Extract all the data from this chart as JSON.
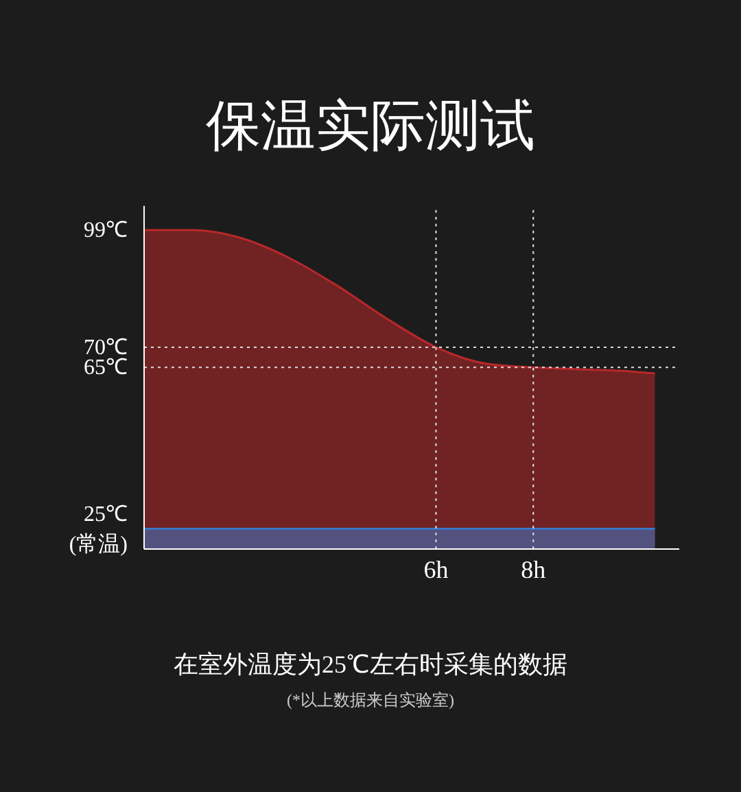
{
  "chart_data": {
    "type": "area",
    "title": "保温实际测试",
    "xlim": [
      0,
      11
    ],
    "xticks": [
      {
        "value": 6,
        "label": "6h"
      },
      {
        "value": 8,
        "label": "8h"
      }
    ],
    "ylim": [
      20,
      105
    ],
    "yticks": [
      {
        "value": 25,
        "label": "25℃\n(常温)"
      },
      {
        "value": 65,
        "label": "65℃"
      },
      {
        "value": 70,
        "label": "70℃"
      },
      {
        "value": 99,
        "label": "99℃"
      }
    ],
    "series": [
      {
        "color": "#b8282a",
        "x": [
          0,
          1,
          2,
          3,
          4,
          5,
          6,
          7,
          8,
          9,
          10,
          10.5
        ],
        "values": [
          99,
          99,
          97,
          92,
          85,
          77,
          70,
          66,
          65,
          64.5,
          64,
          63.5
        ]
      },
      {
        "color": "#3a78c8",
        "x": [
          0,
          10.5
        ],
        "values": [
          25,
          25
        ]
      }
    ],
    "ref_lines": [
      {
        "axis": "y",
        "value": 70,
        "color": "#dddddd",
        "line_style": "dotted"
      },
      {
        "axis": "y",
        "value": 65,
        "color": "#dddddd",
        "line_style": "dotted"
      },
      {
        "axis": "x",
        "value": 6,
        "color": "#dddddd",
        "line_style": "dotted"
      },
      {
        "axis": "x",
        "value": 8,
        "color": "#dddddd",
        "line_style": "dotted"
      }
    ],
    "grid": false,
    "legend": false,
    "annotations": [
      "在室外温度为25℃左右时采集的数据",
      "(*以上数据来自实验室)"
    ]
  }
}
